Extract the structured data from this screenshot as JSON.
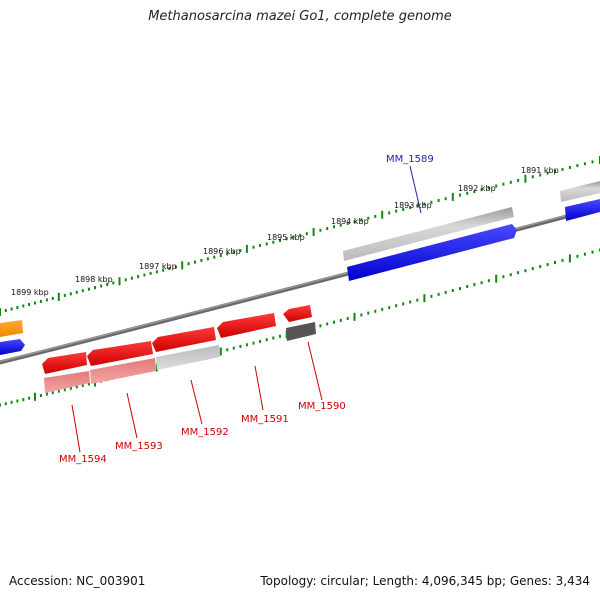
{
  "title": "Methanosarcina mazei Go1, complete genome",
  "footer": {
    "accession": "Accession: NC_003901",
    "summary": "Topology: circular; Length: 4,096,345 bp; Genes: 3,434"
  },
  "colors": {
    "forward_gene": "#0000ee",
    "reverse_gene": "#ee0000",
    "label_forward": "#2222bb",
    "label_reverse": "#cc0000",
    "tick": "#118811",
    "backbone": "#777777",
    "other_gene": "#ff9900"
  },
  "kbp_ticks": [
    {
      "label": "1891 kbp"
    },
    {
      "label": "1892 kbp"
    },
    {
      "label": "1893 kbp"
    },
    {
      "label": "1894 kbp"
    },
    {
      "label": "1895 kbp"
    },
    {
      "label": "1896 kbp"
    },
    {
      "label": "1897 kbp"
    },
    {
      "label": "1898 kbp"
    },
    {
      "label": "1899 kbp"
    }
  ],
  "gene_labels": [
    {
      "id": "MM_1589",
      "strand": "forward"
    },
    {
      "id": "MM_1590",
      "strand": "reverse"
    },
    {
      "id": "MM_1591",
      "strand": "reverse"
    },
    {
      "id": "MM_1592",
      "strand": "reverse"
    },
    {
      "id": "MM_1593",
      "strand": "reverse"
    },
    {
      "id": "MM_1594",
      "strand": "reverse"
    }
  ]
}
